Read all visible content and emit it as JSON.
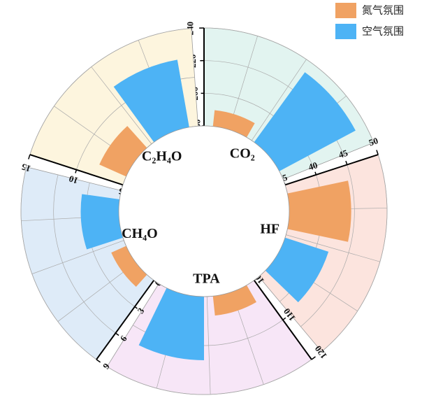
{
  "chart_data": {
    "type": "radial_bar",
    "categories": [
      "CO₂",
      "HF",
      "TPA",
      "CH₄O",
      "C₂H₄O"
    ],
    "backgrounds": [
      "#e2f4f0",
      "#fce4de",
      "#f7e6f7",
      "#deebf8",
      "#fdf5de"
    ],
    "axes": [
      {
        "ylim": [
          180,
          240
        ],
        "yticks": [
          180,
          200,
          220,
          240
        ]
      },
      {
        "ylim": [
          35,
          50
        ],
        "yticks": [
          35,
          40,
          45,
          50
        ]
      },
      {
        "ylim": [
          100,
          120
        ],
        "yticks": [
          100,
          110,
          120
        ]
      },
      {
        "ylim": [
          0,
          9
        ],
        "yticks": [
          0,
          3,
          6,
          9
        ]
      },
      {
        "ylim": [
          5,
          15
        ],
        "yticks": [
          5,
          10,
          15
        ]
      }
    ],
    "series": [
      {
        "name": "氮气氛围",
        "color": "#f0a263",
        "values": [
          190,
          44.5,
          104,
          1.5,
          8
        ]
      },
      {
        "name": "空气氛围",
        "color": "#4db3f5",
        "values": [
          233,
          42,
          113,
          3.5,
          12
        ]
      }
    ]
  }
}
